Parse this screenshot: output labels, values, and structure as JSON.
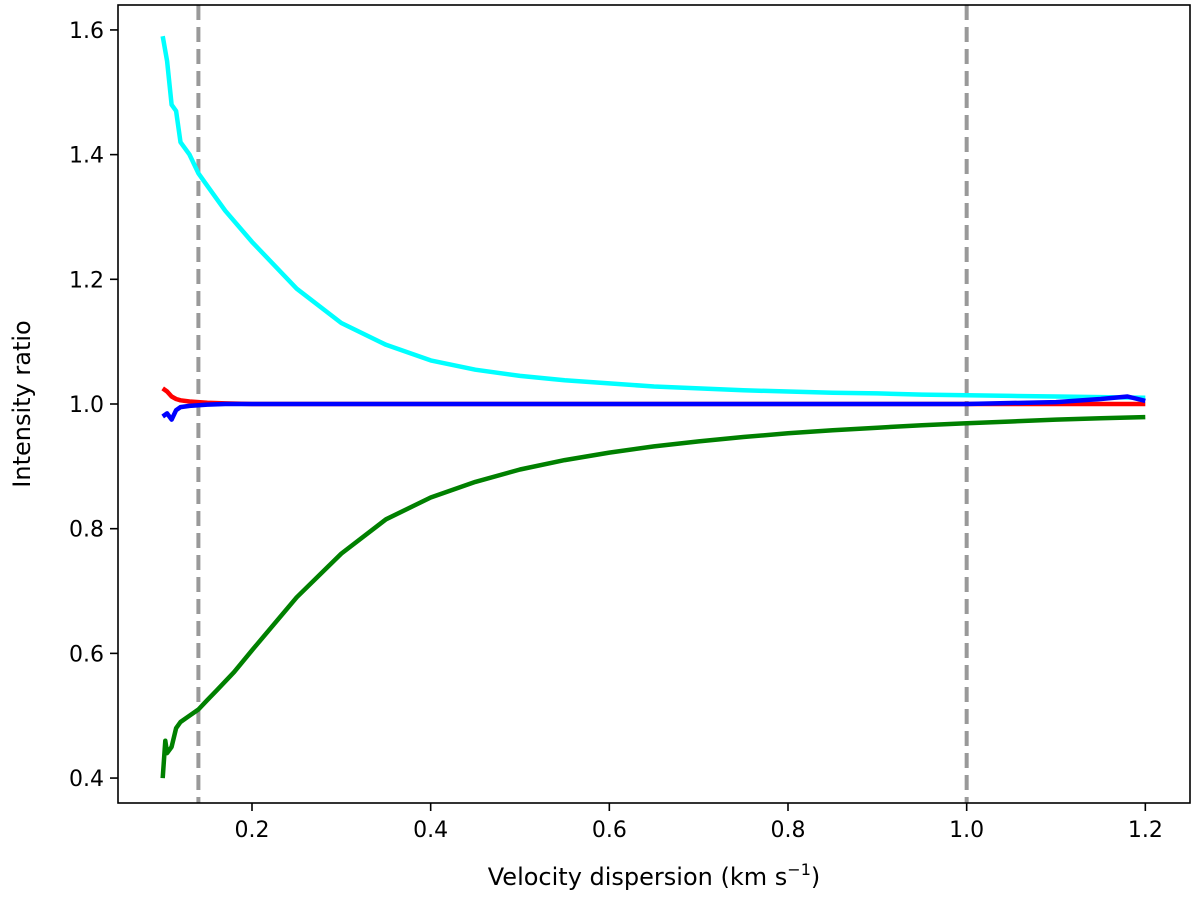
{
  "chart_data": {
    "type": "line",
    "title": "",
    "xlabel": "Velocity dispersion (km s",
    "xlabel_sup": "−1",
    "xlabel_close": ")",
    "ylabel": "Intensity ratio",
    "xlim": [
      0.05,
      1.25
    ],
    "ylim": [
      0.36,
      1.64
    ],
    "x_ticks": [
      0.2,
      0.4,
      0.6,
      0.8,
      1.0,
      1.2
    ],
    "x_tick_labels": [
      "0.2",
      "0.4",
      "0.6",
      "0.8",
      "1.0",
      "1.2"
    ],
    "y_ticks": [
      0.4,
      0.6,
      0.8,
      1.0,
      1.2,
      1.4,
      1.6
    ],
    "y_tick_labels": [
      "0.4",
      "0.6",
      "0.8",
      "1.0",
      "1.2",
      "1.4",
      "1.6"
    ],
    "grid": false,
    "legend": "none",
    "vlines": [
      {
        "x": 0.14,
        "color": "#999999",
        "style": "dashed"
      },
      {
        "x": 1.0,
        "color": "#999999",
        "style": "dashed"
      }
    ],
    "series": [
      {
        "color": "#00ffff",
        "x": [
          0.1,
          0.105,
          0.11,
          0.115,
          0.12,
          0.13,
          0.14,
          0.15,
          0.17,
          0.2,
          0.25,
          0.3,
          0.35,
          0.4,
          0.45,
          0.5,
          0.55,
          0.6,
          0.65,
          0.7,
          0.75,
          0.8,
          0.85,
          0.9,
          0.95,
          1.0,
          1.05,
          1.1,
          1.15,
          1.2
        ],
        "values": [
          1.59,
          1.55,
          1.48,
          1.47,
          1.42,
          1.4,
          1.37,
          1.35,
          1.31,
          1.26,
          1.185,
          1.13,
          1.095,
          1.07,
          1.055,
          1.045,
          1.038,
          1.033,
          1.028,
          1.025,
          1.022,
          1.02,
          1.018,
          1.017,
          1.015,
          1.014,
          1.013,
          1.012,
          1.011,
          1.01
        ]
      },
      {
        "color": "#ff0000",
        "x": [
          0.1,
          0.105,
          0.11,
          0.115,
          0.12,
          0.13,
          0.14,
          0.15,
          0.17,
          0.2,
          0.3,
          0.5,
          0.8,
          1.0,
          1.2
        ],
        "values": [
          1.025,
          1.02,
          1.012,
          1.008,
          1.006,
          1.004,
          1.003,
          1.002,
          1.001,
          1.0,
          1.0,
          1.0,
          1.0,
          1.0,
          1.0
        ]
      },
      {
        "color": "#0000ff",
        "x": [
          0.1,
          0.105,
          0.11,
          0.115,
          0.12,
          0.13,
          0.14,
          0.15,
          0.17,
          0.2,
          0.3,
          0.5,
          0.8,
          1.0,
          1.1,
          1.15,
          1.18,
          1.2
        ],
        "values": [
          0.98,
          0.985,
          0.975,
          0.99,
          0.995,
          0.997,
          0.998,
          0.999,
          1.0,
          1.0,
          1.0,
          1.0,
          1.0,
          1.0,
          1.003,
          1.008,
          1.012,
          1.005
        ]
      },
      {
        "color": "#008000",
        "x": [
          0.1,
          0.103,
          0.105,
          0.11,
          0.115,
          0.12,
          0.13,
          0.14,
          0.15,
          0.16,
          0.18,
          0.2,
          0.25,
          0.3,
          0.35,
          0.4,
          0.45,
          0.5,
          0.55,
          0.6,
          0.65,
          0.7,
          0.75,
          0.8,
          0.85,
          0.9,
          0.95,
          1.0,
          1.05,
          1.1,
          1.15,
          1.2
        ],
        "values": [
          0.4,
          0.46,
          0.44,
          0.45,
          0.48,
          0.49,
          0.5,
          0.51,
          0.525,
          0.54,
          0.57,
          0.605,
          0.69,
          0.76,
          0.815,
          0.85,
          0.875,
          0.895,
          0.91,
          0.922,
          0.932,
          0.94,
          0.947,
          0.953,
          0.958,
          0.962,
          0.966,
          0.969,
          0.972,
          0.975,
          0.977,
          0.979
        ]
      }
    ]
  }
}
